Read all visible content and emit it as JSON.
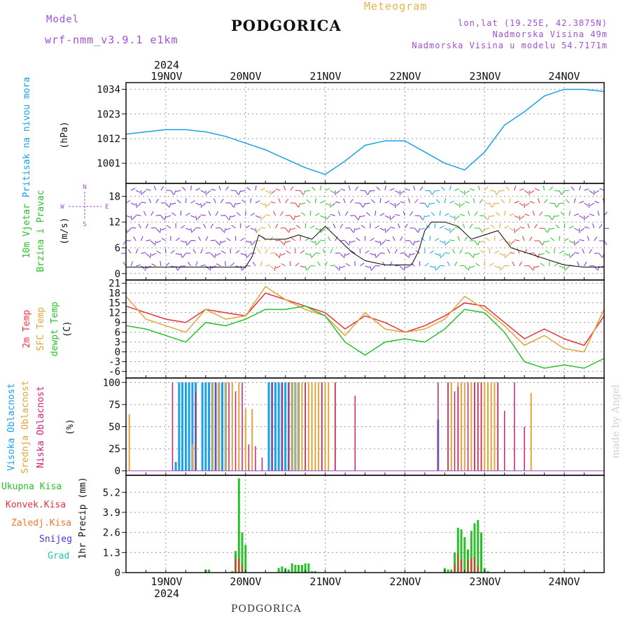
{
  "header": {
    "model_label": "Model",
    "model_name": "wrf-nmm_v3.9.1 e1km",
    "title": "PODGORICA",
    "meteogram": "Meteogram",
    "lonlat": "lon,lat (19.25E, 42.3875N)",
    "elevation": "Nadmorska Visina 49m",
    "model_elevation": "Nadmorska Visina u modelu 54.7171m"
  },
  "footer": {
    "station": "PODGORICA",
    "credit": "made by Angel"
  },
  "time_axis": {
    "year": "2024",
    "days": [
      "19NOV",
      "20NOV",
      "21NOV",
      "22NOV",
      "23NOV",
      "24NOV"
    ],
    "range_hours": [
      -12,
      132
    ]
  },
  "colors": {
    "pressure": "#1aa0e6",
    "temp2m": "#e8323c",
    "sfc": "#e0a53a",
    "dewpoint": "#2ac02a",
    "high_cloud": "#1aa0e6",
    "mid_cloud": "#e0a53a",
    "low_cloud": "#d0206e",
    "precip_total": "#2ac02a",
    "precip_conv": "#e8323c",
    "precip_frozen": "#f07830",
    "snow": "#3a3ae0",
    "graupel": "#22c8b0"
  },
  "panels": {
    "pressure": {
      "label": "Pritisak na nivou mora",
      "unit": "(hPa)"
    },
    "wind": {
      "label1": "10m Vjetar",
      "label2": "Brzina i Pravac",
      "unit": "(m/s)",
      "compass_n": "N",
      "compass_w": "W",
      "compass_e": "E",
      "compass_s": "S"
    },
    "temp": {
      "label1": "2m Temp",
      "label2": "SFC Temp",
      "label3": "dewpt Temp",
      "unit": "(C)"
    },
    "cloud": {
      "label1": "Visoka Oblacnost",
      "label2": "Srednja Oblacnost",
      "label3": "Niska Oblacnost",
      "unit": "(%)"
    },
    "precip": {
      "unit": "1hr Precip (mm)",
      "legend": [
        "Ukupna Kisa",
        "Konvek.Kisa",
        "Zaledj.Kisa",
        "Snijeg",
        "Grad"
      ]
    }
  },
  "chart_data": [
    {
      "type": "line",
      "ylabel": "(hPa)",
      "yticks": [
        1001,
        1012,
        1023,
        1034
      ],
      "ylim": [
        992,
        1037
      ],
      "series": [
        {
          "x": [
            -12,
            -6,
            0,
            6,
            12,
            18,
            24,
            30,
            36,
            42,
            48,
            54,
            60,
            66,
            72,
            78,
            84,
            90,
            96,
            102,
            108,
            114,
            120,
            126,
            132
          ],
          "values": [
            1014,
            1015,
            1016,
            1016,
            1015,
            1013,
            1010,
            1007,
            1003,
            999,
            996,
            1002,
            1009,
            1011,
            1011,
            1006,
            1001,
            998,
            1006,
            1018,
            1024,
            1031,
            1034,
            1034,
            1033
          ]
        }
      ]
    },
    {
      "type": "line",
      "ylabel": "(m/s)",
      "yticks": [
        0,
        6,
        12,
        18
      ],
      "ylim": [
        -1.5,
        21
      ],
      "series": [
        {
          "x": [
            -12,
            0,
            12,
            24,
            26,
            28,
            30,
            36,
            40,
            44,
            48,
            52,
            56,
            60,
            66,
            72,
            74,
            76,
            78,
            80,
            84,
            88,
            92,
            96,
            100,
            104,
            108,
            112,
            120,
            126,
            132
          ],
          "values": [
            1.5,
            1.5,
            1.5,
            1.5,
            4,
            9,
            8,
            8,
            9,
            8,
            11,
            8,
            5,
            3,
            2,
            2,
            2,
            5,
            10,
            12,
            12,
            11,
            8,
            9,
            10,
            6,
            5,
            4,
            2,
            1.5,
            1.5
          ]
        }
      ]
    },
    {
      "type": "line",
      "ylabel": "(C)",
      "yticks": [
        -6,
        -3,
        0,
        3,
        6,
        9,
        12,
        15,
        18,
        21
      ],
      "ylim": [
        -8,
        22
      ],
      "series": [
        {
          "x": [
            -12,
            -6,
            0,
            6,
            12,
            18,
            24,
            30,
            36,
            42,
            48,
            54,
            60,
            66,
            72,
            78,
            84,
            90,
            96,
            102,
            108,
            114,
            120,
            126,
            132
          ],
          "values": [
            14,
            12,
            10,
            9,
            13,
            12,
            11,
            18,
            16,
            14,
            12,
            7,
            11,
            9,
            6,
            8,
            11,
            15,
            14,
            9,
            4,
            7,
            4,
            2,
            11
          ]
        },
        {
          "x": [
            -12,
            -6,
            0,
            6,
            12,
            18,
            24,
            30,
            36,
            42,
            48,
            54,
            60,
            66,
            72,
            78,
            84,
            90,
            96,
            102,
            108,
            114,
            120,
            126,
            132
          ],
          "values": [
            17,
            10,
            8,
            6,
            13,
            10,
            11,
            20,
            16,
            13,
            11,
            5,
            12,
            7,
            6,
            7,
            10,
            17,
            13,
            8,
            2,
            5,
            1,
            0,
            13
          ]
        },
        {
          "x": [
            -12,
            -6,
            0,
            6,
            12,
            18,
            24,
            30,
            36,
            42,
            48,
            54,
            60,
            66,
            72,
            78,
            84,
            90,
            96,
            102,
            108,
            114,
            120,
            126,
            132
          ],
          "values": [
            8,
            7,
            5,
            3,
            9,
            8,
            10,
            13,
            13,
            14,
            11,
            3,
            -1,
            3,
            4,
            3,
            7,
            13,
            12,
            6,
            -3,
            -5,
            -4,
            -5,
            -2
          ]
        }
      ]
    },
    {
      "type": "bar",
      "ylabel": "(%)",
      "yticks": [
        0,
        25,
        50,
        75,
        100
      ],
      "ylim": [
        -5,
        105
      ],
      "high_x": [
        3,
        4,
        5,
        6,
        7,
        8,
        9,
        11,
        12,
        13,
        14,
        15,
        16,
        17,
        18,
        31,
        32,
        33,
        34,
        35,
        36,
        37,
        38,
        39,
        40,
        82
      ],
      "high_values": [
        10,
        100,
        100,
        100,
        100,
        100,
        100,
        100,
        100,
        100,
        100,
        100,
        100,
        100,
        100,
        100,
        100,
        100,
        100,
        100,
        100,
        100,
        100,
        100,
        100,
        58
      ],
      "mid_x": [
        -11,
        8,
        14,
        16,
        18,
        20,
        22,
        24,
        26,
        37,
        38,
        39,
        40,
        41,
        42,
        43,
        44,
        45,
        46,
        47,
        48,
        49,
        51,
        85,
        86,
        88,
        89,
        90,
        92,
        93,
        94,
        95,
        96,
        97,
        98,
        99,
        100,
        110
      ],
      "mid_values": [
        64,
        30,
        100,
        100,
        100,
        100,
        100,
        70,
        70,
        100,
        100,
        100,
        100,
        100,
        100,
        100,
        100,
        100,
        100,
        100,
        100,
        100,
        100,
        100,
        100,
        100,
        100,
        100,
        100,
        100,
        100,
        100,
        100,
        100,
        100,
        100,
        100,
        88
      ],
      "low_x": [
        2,
        9,
        15,
        19,
        21,
        23,
        25,
        27,
        29,
        32,
        35,
        37,
        42,
        47,
        51,
        57,
        82,
        85,
        87,
        88,
        91,
        93,
        94,
        95,
        100,
        102,
        105,
        108
      ],
      "low_values": [
        100,
        90,
        100,
        100,
        90,
        100,
        30,
        28,
        15,
        100,
        100,
        100,
        100,
        100,
        100,
        85,
        100,
        100,
        90,
        95,
        100,
        100,
        100,
        100,
        100,
        68,
        100,
        50
      ]
    },
    {
      "type": "bar",
      "ylabel": "1hr Precip (mm)",
      "yticks": [
        0,
        1.3,
        2.6,
        3.9,
        5.2
      ],
      "ylim": [
        0,
        6.3
      ],
      "x": [
        12,
        13,
        20,
        21,
        22,
        23,
        24,
        34,
        35,
        36,
        37,
        38,
        39,
        40,
        41,
        42,
        43,
        44,
        45,
        84,
        85,
        86,
        87,
        88,
        89,
        90,
        91,
        92,
        93,
        94,
        95,
        96,
        97
      ],
      "values": [
        0.2,
        0.2,
        0.1,
        1.4,
        6.1,
        2.6,
        1.8,
        0.3,
        0.4,
        0.3,
        0.2,
        0.6,
        0.5,
        0.5,
        0.5,
        0.6,
        0.6,
        0.1,
        0.1,
        0.3,
        0.2,
        0.2,
        1.3,
        2.9,
        2.8,
        2.3,
        1.5,
        2.7,
        3.2,
        3.4,
        2.6,
        0.3,
        0.1
      ],
      "conv_x": [
        21,
        22,
        23,
        87,
        88,
        89,
        91,
        92,
        93,
        94
      ],
      "conv_values": [
        0.9,
        0.9,
        0.5,
        0.5,
        1.2,
        0.8,
        0.8,
        0.9,
        1.0,
        0.4
      ]
    }
  ]
}
